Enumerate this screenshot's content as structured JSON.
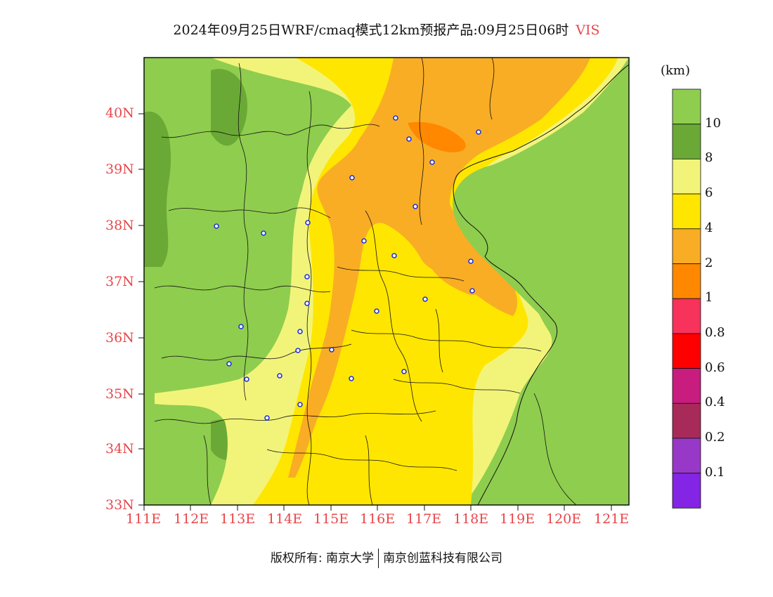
{
  "title": {
    "main": "2024年09月25日WRF/cmaq模式12km预报产品:09月25日06时",
    "variable": "VIS"
  },
  "map": {
    "lat_labels": [
      "40N",
      "39N",
      "38N",
      "37N",
      "36N",
      "35N",
      "34N",
      "33N"
    ],
    "lon_labels": [
      "111E",
      "112E",
      "113E",
      "114E",
      "115E",
      "116E",
      "117E",
      "118E",
      "119E",
      "120E",
      "121E"
    ],
    "axis_color": "#e8464a"
  },
  "colorbar": {
    "unit": "(km)",
    "labels": [
      "10",
      "8",
      "6",
      "4",
      "2",
      "1",
      "0.8",
      "0.6",
      "0.4",
      "0.2",
      "0.1"
    ],
    "colors": [
      "#8fcd4e",
      "#6aa935",
      "#f2f47a",
      "#ffe600",
      "#f9ad24",
      "#ff8800",
      "#f7325b",
      "#ff0000",
      "#c81c7f",
      "#a82a58",
      "#9838c8",
      "#8424e4"
    ]
  },
  "footer": {
    "left": "版权所有: 南京大学",
    "right": "南京创蓝科技有限公司"
  }
}
